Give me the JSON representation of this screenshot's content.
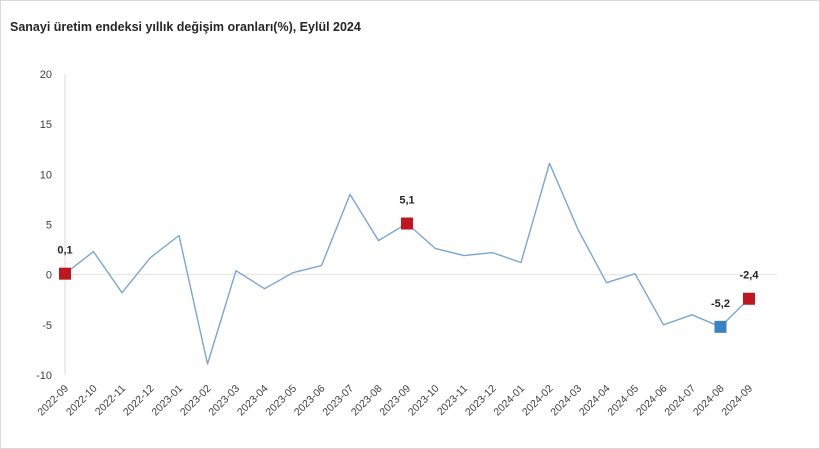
{
  "title": "Sanayi üretim endeksi yıllık değişim oranları(%), Eylül 2024",
  "chart_data": {
    "type": "line",
    "title": "Sanayi üretim endeksi yıllık değişim oranları(%), Eylül 2024",
    "xlabel": "",
    "ylabel": "",
    "ylim": [
      -10,
      20
    ],
    "yticks": [
      "-10",
      "-5",
      "0",
      "5",
      "10",
      "15",
      "20"
    ],
    "grid": false,
    "legend": "none",
    "line_color": "#7aa6d6",
    "categories": [
      "2022-09",
      "2022-10",
      "2022-11",
      "2022-12",
      "2023-01",
      "2023-02",
      "2023-03",
      "2023-04",
      "2023-05",
      "2023-06",
      "2023-07",
      "2023-08",
      "2023-09",
      "2023-10",
      "2023-11",
      "2023-12",
      "2024-01",
      "2024-02",
      "2024-03",
      "2024-04",
      "2024-05",
      "2024-06",
      "2024-07",
      "2024-08",
      "2024-09"
    ],
    "values": [
      0.1,
      2.3,
      -1.8,
      1.7,
      3.9,
      -8.9,
      0.4,
      -1.4,
      0.2,
      0.9,
      8.0,
      3.4,
      5.1,
      2.6,
      1.9,
      2.2,
      1.2,
      11.1,
      4.5,
      -0.8,
      0.1,
      -5.0,
      -4.0,
      -5.2,
      -2.4
    ],
    "highlights": [
      {
        "category": "2022-09",
        "value": 0.1,
        "label": "0,1",
        "color": "#c0161f"
      },
      {
        "category": "2023-09",
        "value": 5.1,
        "label": "5,1",
        "color": "#c0161f"
      },
      {
        "category": "2024-08",
        "value": -5.2,
        "label": "-5,2",
        "color": "#3a82c4"
      },
      {
        "category": "2024-09",
        "value": -2.4,
        "label": "-2,4",
        "color": "#c0161f"
      }
    ]
  }
}
